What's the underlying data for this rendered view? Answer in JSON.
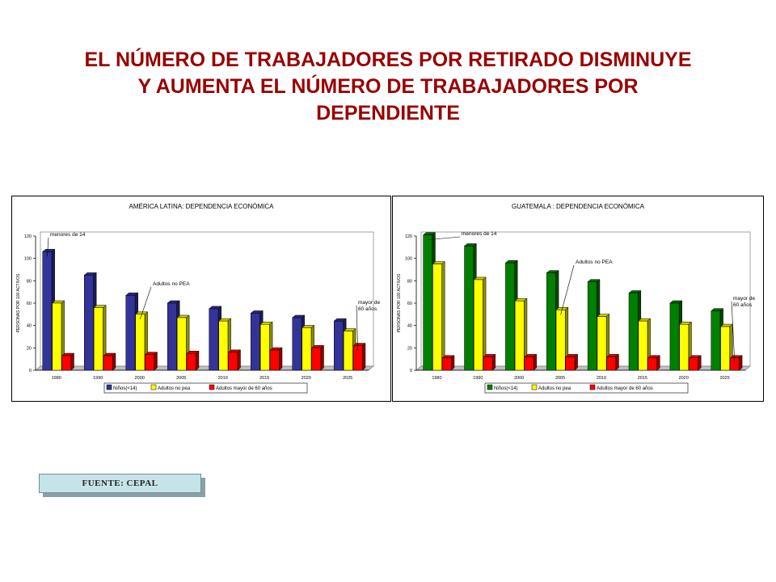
{
  "title_lines": [
    "EL NÚMERO DE TRABAJADORES POR RETIRADO DISMINUYE",
    "Y AUMENTA EL NÚMERO DE TRABAJADORES POR",
    "DEPENDIENTE"
  ],
  "source_label": "FUENTE: CEPAL",
  "colors": {
    "title": "#990000",
    "latam_children": "#333399",
    "guate_children": "#008000",
    "adults": "#ffff00",
    "elderly": "#ff0000"
  },
  "chart_data": [
    {
      "type": "bar",
      "title": "AMÉRICA LATINA: DEPENDENCIA ECONÓMICA",
      "ylabel": "PERSONAS POR 100 ACTIVOS",
      "xlabel": "",
      "ylim": [
        0,
        120
      ],
      "yticks": [
        0,
        20,
        40,
        60,
        80,
        100,
        120
      ],
      "categories": [
        "1980",
        "1990",
        "2000",
        "2005",
        "2010",
        "2015",
        "2020",
        "2025"
      ],
      "series": [
        {
          "name": "Niños(<14)",
          "values": [
            106,
            85,
            67,
            60,
            55,
            51,
            47,
            44
          ]
        },
        {
          "name": "Adultos no pea",
          "values": [
            60,
            56,
            50,
            47,
            44,
            41,
            38,
            35
          ]
        },
        {
          "name": "Adultos mayor de 60 años",
          "values": [
            13,
            13,
            14,
            15,
            16,
            18,
            20,
            22
          ]
        }
      ],
      "annotations": [
        {
          "text": "menores de 14",
          "series": 0,
          "index": 0
        },
        {
          "text": "Adultos no PEA",
          "series": 1,
          "index": 2
        },
        {
          "text": "mayor de 60 años",
          "series": 2,
          "index": 7
        }
      ],
      "legend_position": "bottom"
    },
    {
      "type": "bar",
      "title": "GUATEMALA : DEPENDENCIA ECONÓMICA",
      "ylabel": "PERSONAS POR 100 ACTIVOS",
      "xlabel": "",
      "ylim": [
        0,
        120
      ],
      "yticks": [
        0,
        20,
        40,
        60,
        80,
        100,
        120
      ],
      "categories": [
        "1980",
        "1990",
        "2000",
        "2005",
        "2010",
        "2015",
        "2020",
        "2025"
      ],
      "series": [
        {
          "name": "Niños(<14)",
          "values": [
            121,
            111,
            96,
            87,
            79,
            69,
            60,
            53
          ]
        },
        {
          "name": "Adultos no pea",
          "values": [
            95,
            81,
            62,
            54,
            48,
            44,
            41,
            39
          ]
        },
        {
          "name": "Adultos mayor de 60 años",
          "values": [
            11,
            12,
            12,
            12,
            12,
            11,
            11,
            11
          ]
        }
      ],
      "annotations": [
        {
          "text": "menores de 14",
          "series": 0,
          "index": 0
        },
        {
          "text": "Adultos no PEA",
          "series": 1,
          "index": 3
        },
        {
          "text": "mayor de 60 años",
          "series": 2,
          "index": 7
        }
      ],
      "legend_position": "bottom"
    }
  ]
}
